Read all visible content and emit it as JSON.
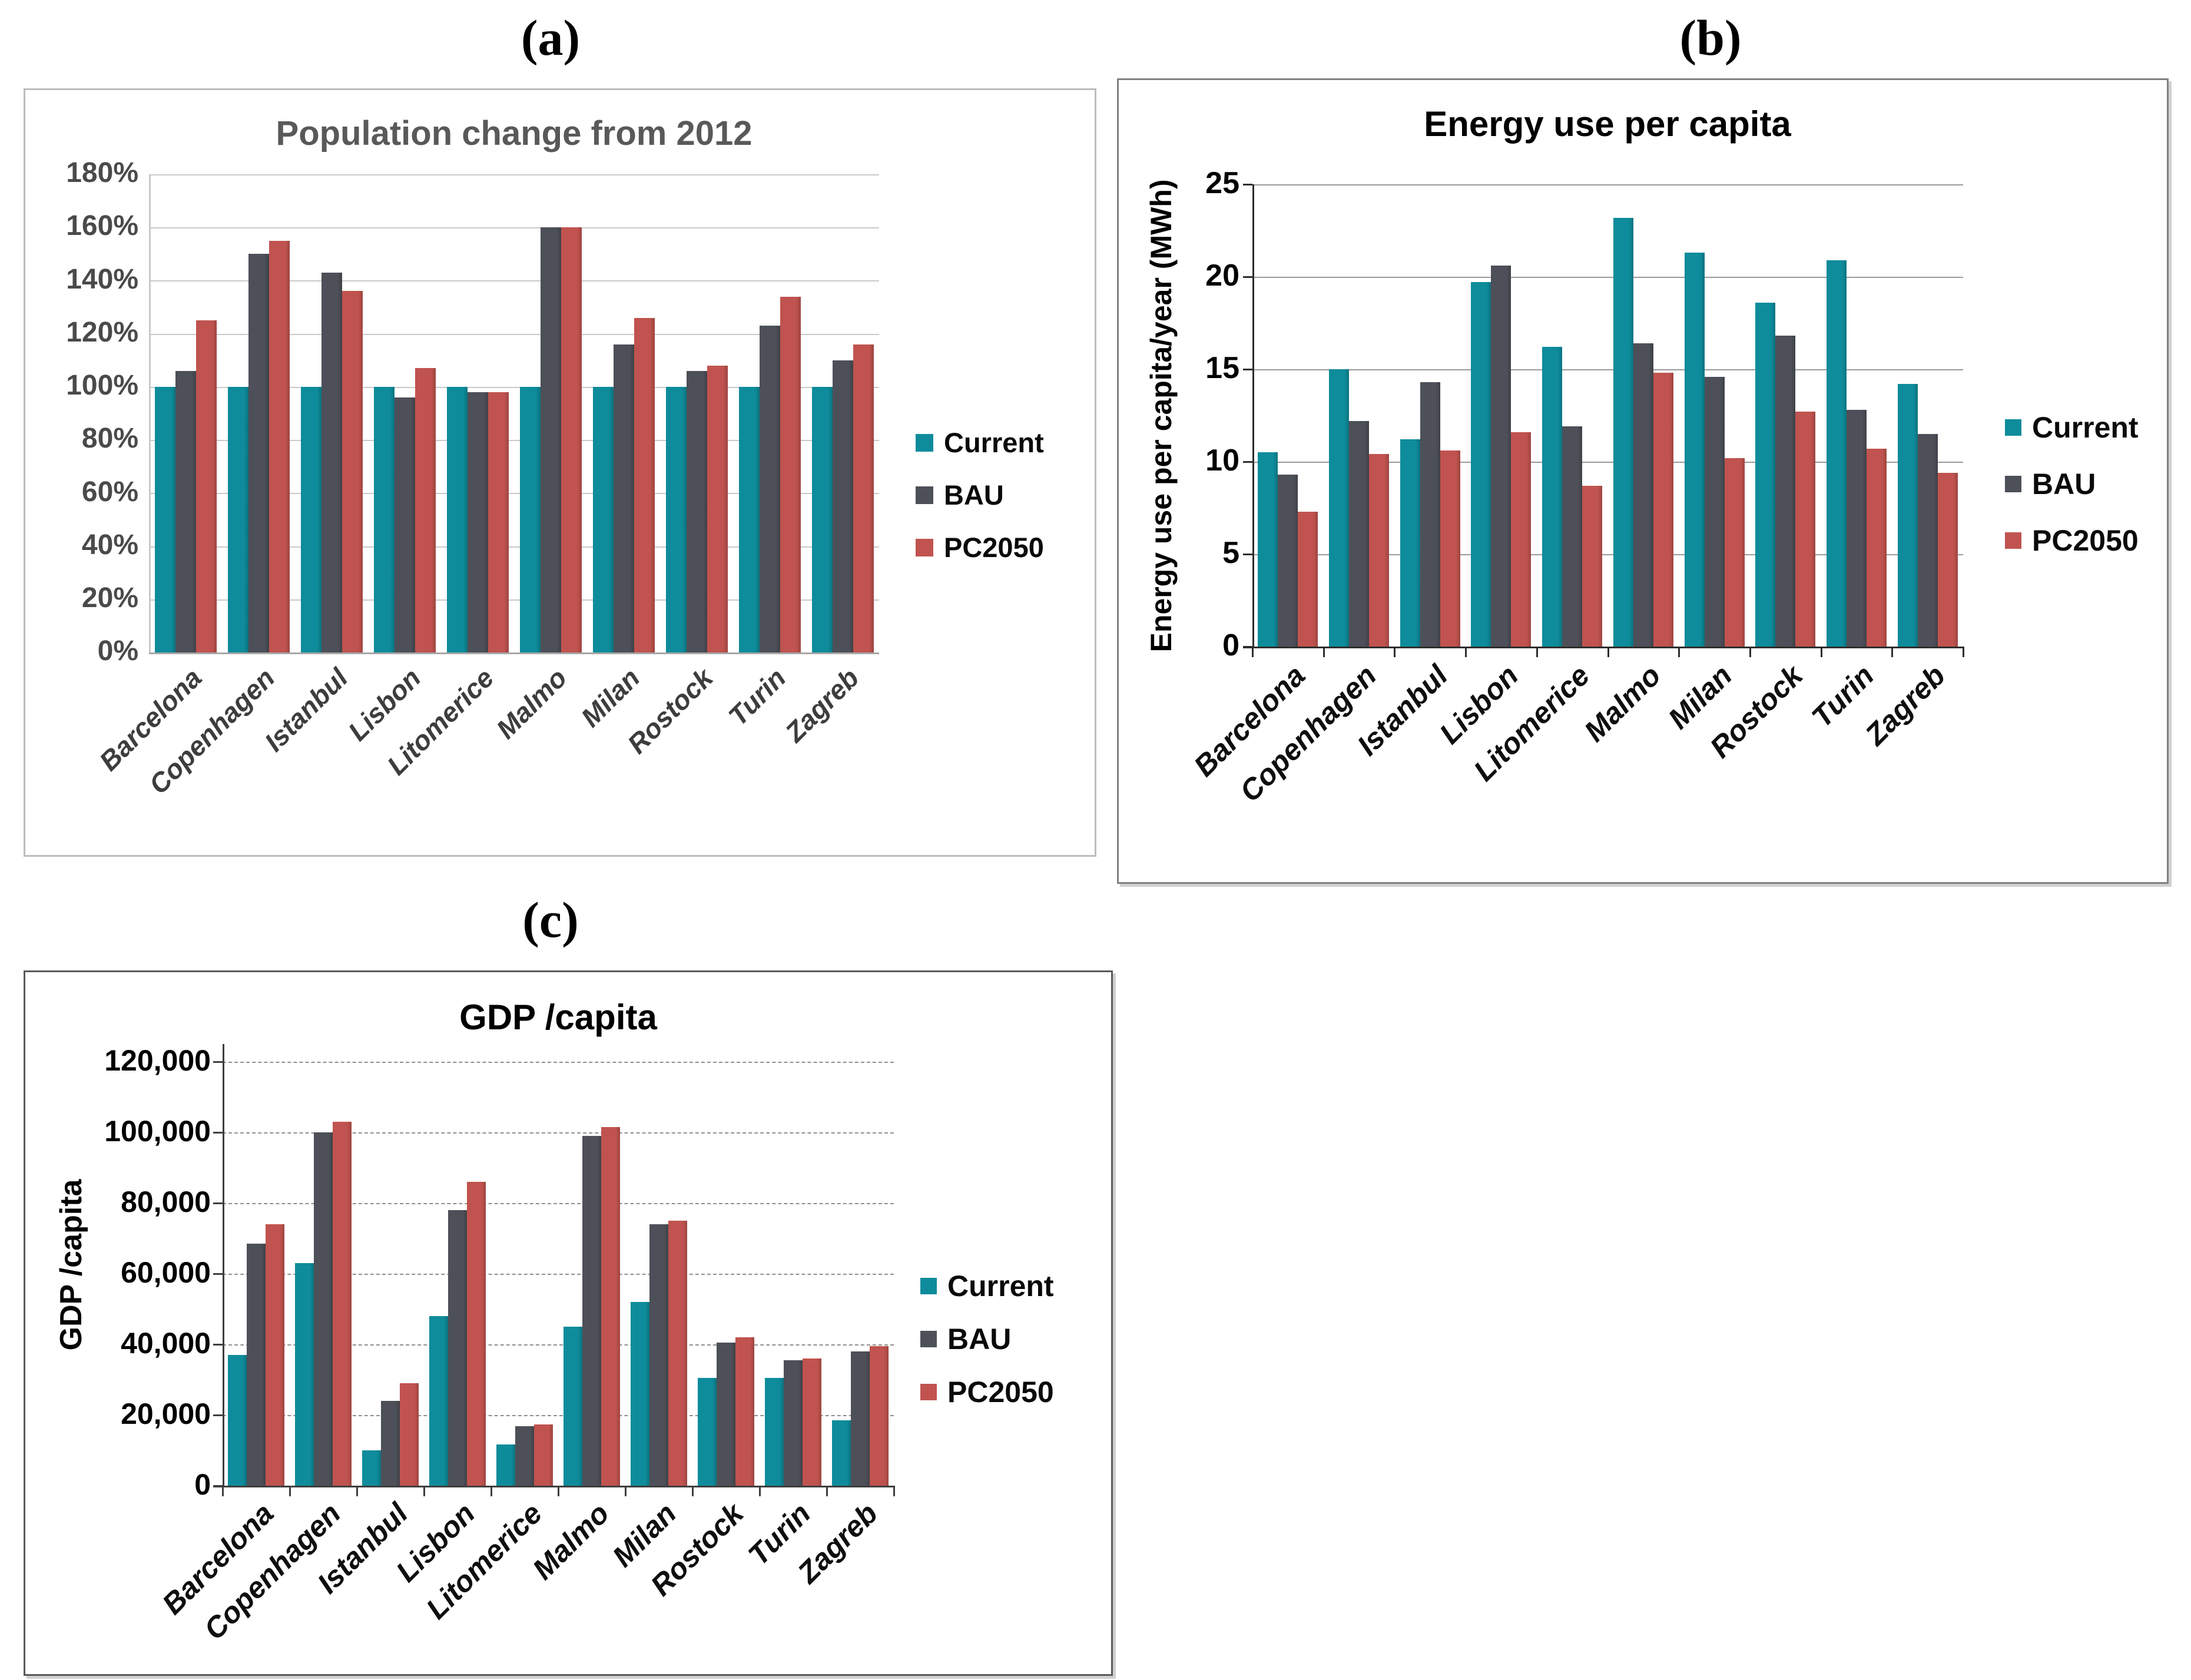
{
  "figure": {
    "panel_labels": {
      "a": "(a)",
      "b": "(b)",
      "c": "(c)"
    }
  },
  "legend": {
    "items": [
      {
        "label": "Current",
        "color": "#0E8C9B"
      },
      {
        "label": "BAU",
        "color": "#4D5058"
      },
      {
        "label": "PC2050",
        "color": "#C0534F"
      }
    ]
  },
  "chart_data": [
    {
      "id": "population",
      "type": "bar",
      "title": "Population change from 2012",
      "xlabel": "",
      "ylabel": "",
      "ylim": [
        0,
        180
      ],
      "ytick_step": 20,
      "ytick_labels": [
        "0%",
        "20%",
        "40%",
        "60%",
        "80%",
        "100%",
        "120%",
        "140%",
        "160%",
        "180%"
      ],
      "grid": true,
      "legend_position": "right",
      "categories": [
        "Barcelona",
        "Copenhagen",
        "Istanbul",
        "Lisbon",
        "Litomerice",
        "Malmo",
        "Milan",
        "Rostock",
        "Turin",
        "Zagreb"
      ],
      "series": [
        {
          "name": "Current",
          "values": [
            100,
            100,
            100,
            100,
            100,
            100,
            100,
            100,
            100,
            100
          ]
        },
        {
          "name": "BAU",
          "values": [
            106,
            150,
            143,
            96,
            98,
            160,
            116,
            106,
            123,
            110
          ]
        },
        {
          "name": "PC2050",
          "values": [
            125,
            155,
            136,
            107,
            98,
            160,
            126,
            108,
            134,
            116
          ]
        }
      ]
    },
    {
      "id": "energy",
      "type": "bar",
      "title": "Energy use per capita",
      "xlabel": "",
      "ylabel": "Energy use per capita/year (MWh)",
      "ylim": [
        0,
        25
      ],
      "ytick_step": 5,
      "ytick_labels": [
        "0",
        "5",
        "10",
        "15",
        "20",
        "25"
      ],
      "grid": true,
      "legend_position": "right",
      "categories": [
        "Barcelona",
        "Copenhagen",
        "Istanbul",
        "Lisbon",
        "Litomerice",
        "Malmo",
        "Milan",
        "Rostock",
        "Turin",
        "Zagreb"
      ],
      "series": [
        {
          "name": "Current",
          "values": [
            10.5,
            15.0,
            11.2,
            19.7,
            16.2,
            23.2,
            21.3,
            18.6,
            20.9,
            14.2
          ]
        },
        {
          "name": "BAU",
          "values": [
            9.3,
            12.2,
            14.3,
            20.6,
            11.9,
            16.4,
            14.6,
            16.8,
            12.8,
            11.5
          ]
        },
        {
          "name": "PC2050",
          "values": [
            7.3,
            10.4,
            10.6,
            11.6,
            8.7,
            14.8,
            10.2,
            12.7,
            10.7,
            9.4
          ]
        }
      ]
    },
    {
      "id": "gdp",
      "type": "bar",
      "title": "GDP /capita",
      "xlabel": "",
      "ylabel": "GDP /capita",
      "ylim": [
        0,
        120000
      ],
      "ytick_step": 20000,
      "ytick_labels": [
        "0",
        "20,000",
        "40,000",
        "60,000",
        "80,000",
        "100,000",
        "120,000"
      ],
      "grid": true,
      "legend_position": "right",
      "categories": [
        "Barcelona",
        "Copenhagen",
        "Istanbul",
        "Lisbon",
        "Litomerice",
        "Malmo",
        "Milan",
        "Rostock",
        "Turin",
        "Zagreb"
      ],
      "series": [
        {
          "name": "Current",
          "values": [
            37000,
            63000,
            10000,
            48000,
            11700,
            45000,
            52000,
            30500,
            30500,
            18500
          ]
        },
        {
          "name": "BAU",
          "values": [
            68500,
            100000,
            24000,
            78000,
            16800,
            99000,
            74000,
            40500,
            35500,
            38000
          ]
        },
        {
          "name": "PC2050",
          "values": [
            74000,
            103000,
            29000,
            86000,
            17300,
            101500,
            75000,
            42000,
            36000,
            39500
          ]
        }
      ]
    }
  ]
}
